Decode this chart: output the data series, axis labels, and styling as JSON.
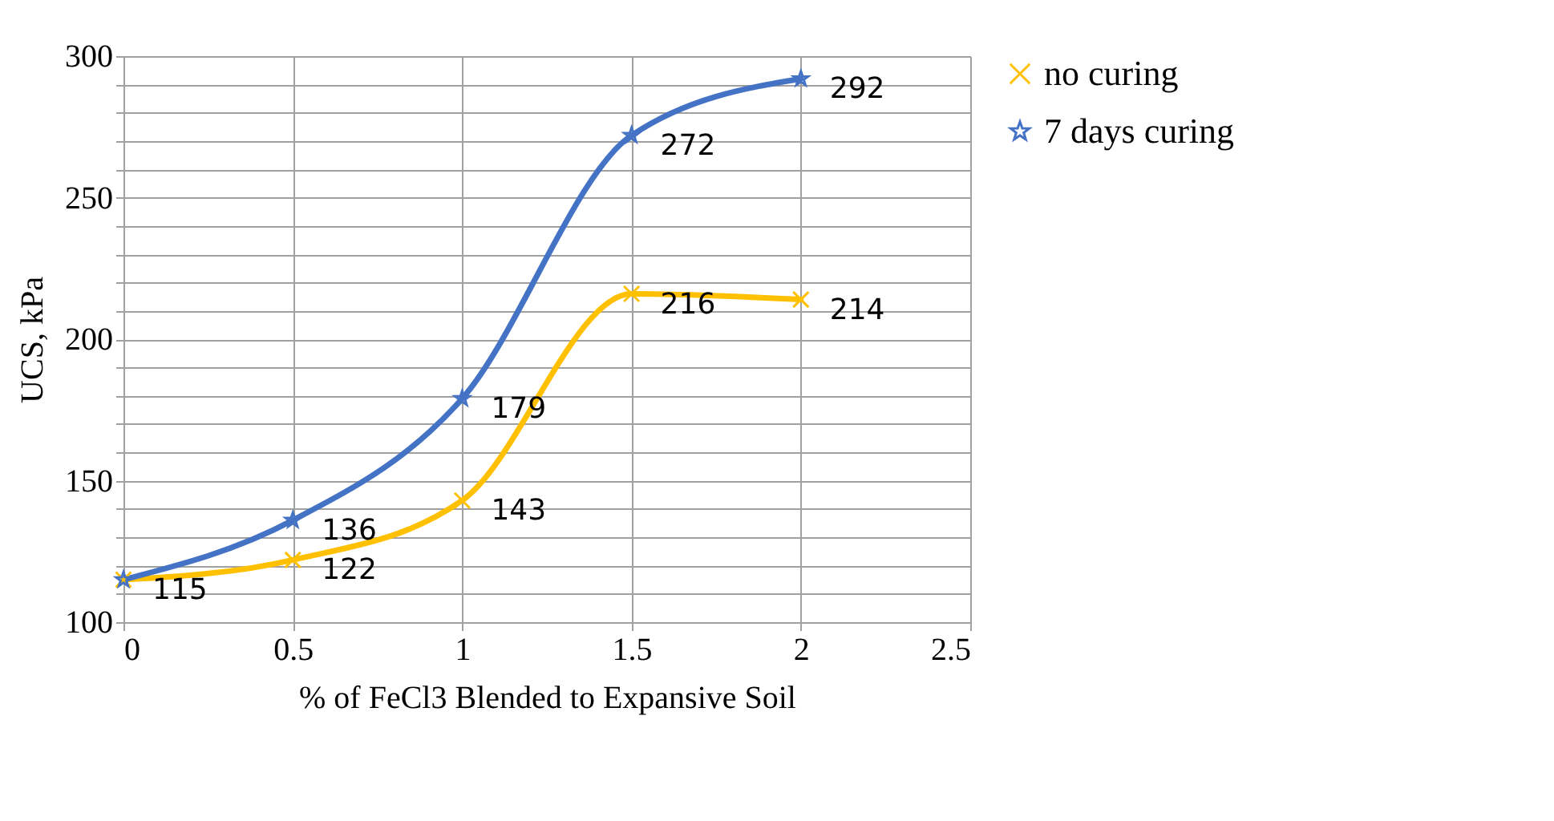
{
  "chart_data": {
    "type": "line",
    "xlabel": "% of FeCl3 Blended to Expansive Soil",
    "ylabel": "UCS, kPa",
    "x": [
      0,
      0.5,
      1,
      1.5,
      2
    ],
    "series": [
      {
        "name": "no curing",
        "color": "#ffc000",
        "marker": "cross",
        "values": [
          115,
          122,
          143,
          216,
          214
        ],
        "value_labels": [
          null,
          "122",
          "143",
          "216",
          "214"
        ]
      },
      {
        "name": "7 days curing",
        "color": "#4472c4",
        "marker": "star",
        "values": [
          115,
          136,
          179,
          272,
          292
        ],
        "value_labels": [
          "115",
          "136",
          "179",
          "272",
          "292"
        ]
      }
    ],
    "xlim": [
      0,
      2.5
    ],
    "xticks": [
      0,
      0.5,
      1,
      1.5,
      2,
      2.5
    ],
    "ylim": [
      100,
      300
    ],
    "yticks": [
      100,
      {
        "value": 110,
        "label": null
      },
      {
        "value": 120,
        "label": null
      },
      {
        "value": 130,
        "label": null
      },
      {
        "value": 140,
        "label": null
      },
      150,
      {
        "value": 160,
        "label": null
      },
      {
        "value": 170,
        "label": null
      },
      {
        "value": 180,
        "label": null
      },
      {
        "value": 190,
        "label": null
      },
      200,
      {
        "value": 210,
        "label": null
      },
      {
        "value": 220,
        "label": null
      },
      {
        "value": 230,
        "label": null
      },
      {
        "value": 240,
        "label": null
      },
      250,
      {
        "value": 260,
        "label": null
      },
      {
        "value": 270,
        "label": null
      },
      {
        "value": 280,
        "label": null
      },
      {
        "value": 290,
        "label": null
      },
      300
    ],
    "grid": true,
    "legend": "right",
    "line_style": "solid"
  }
}
